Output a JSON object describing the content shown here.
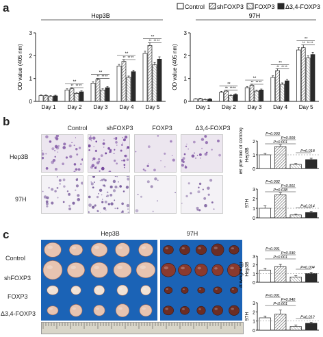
{
  "figure": {
    "panel_letters": [
      "a",
      "b",
      "c"
    ],
    "legend": {
      "entries": [
        {
          "label": "Control",
          "pattern": "white"
        },
        {
          "label": "shFOXP3",
          "pattern": "hatch"
        },
        {
          "label": "FOXP3",
          "pattern": "light-hatch"
        },
        {
          "label": "Δ3,4-FOXP3",
          "pattern": "black"
        }
      ]
    },
    "panel_b": {
      "columns": [
        "Control",
        "shFOXP3",
        "FOXP3",
        "Δ3,4-FOXP3"
      ],
      "rows": [
        "Hep3B",
        "97H"
      ]
    },
    "panel_c": {
      "column_headers": [
        "Hep3B",
        "97H"
      ],
      "rows": [
        "Control",
        "shFOXP3",
        "FOXP3",
        "Δ3,4-FOXP3"
      ]
    },
    "colors": {
      "white_bar": "#ffffff",
      "hatch_bar": "#9a9a9a",
      "light_hatch_bar": "#c8c8c8",
      "black_bar": "#2a2a2a",
      "tumor_bg": "#1b63b6"
    }
  },
  "chart_data": [
    {
      "type": "bar",
      "title": "Hep3B",
      "ylabel": "OD value (405 nm)",
      "categories": [
        "Day 1",
        "Day 2",
        "Day 3",
        "Day 4",
        "Day 5"
      ],
      "ylim": [
        0,
        3
      ],
      "yticks": [
        "0",
        "1",
        "2",
        "3"
      ],
      "series": [
        {
          "name": "Control",
          "values": [
            0.25,
            0.5,
            0.8,
            1.55,
            2.1
          ],
          "err": [
            0.03,
            0.05,
            0.06,
            0.07,
            0.1
          ]
        },
        {
          "name": "shFOXP3",
          "values": [
            0.25,
            0.55,
            0.95,
            1.75,
            2.45
          ],
          "err": [
            0.03,
            0.05,
            0.06,
            0.08,
            0.12
          ]
        },
        {
          "name": "FOXP3",
          "values": [
            0.22,
            0.35,
            0.5,
            1.05,
            1.6
          ],
          "err": [
            0.03,
            0.04,
            0.05,
            0.06,
            0.1
          ]
        },
        {
          "name": "Δ3,4-FOXP3",
          "values": [
            0.24,
            0.42,
            0.6,
            1.3,
            1.85
          ],
          "err": [
            0.03,
            0.04,
            0.05,
            0.07,
            0.1
          ]
        }
      ],
      "annotations": [
        "**"
      ]
    },
    {
      "type": "bar",
      "title": "97H",
      "ylabel": "OD value (405 nm)",
      "categories": [
        "Day 1",
        "Day 2",
        "Day 3",
        "Day 4",
        "Day 5"
      ],
      "ylim": [
        0,
        3
      ],
      "yticks": [
        "0",
        "1",
        "2",
        "3"
      ],
      "series": [
        {
          "name": "Control",
          "values": [
            0.1,
            0.4,
            0.6,
            1.05,
            2.25
          ],
          "err": [
            0.02,
            0.04,
            0.05,
            0.07,
            0.1
          ]
        },
        {
          "name": "shFOXP3",
          "values": [
            0.12,
            0.45,
            0.7,
            1.35,
            2.35
          ],
          "err": [
            0.02,
            0.04,
            0.05,
            0.08,
            0.12
          ]
        },
        {
          "name": "FOXP3",
          "values": [
            0.08,
            0.25,
            0.45,
            0.75,
            1.9
          ],
          "err": [
            0.02,
            0.03,
            0.04,
            0.06,
            0.1
          ]
        },
        {
          "name": "Δ3,4-FOXP3",
          "values": [
            0.1,
            0.3,
            0.5,
            0.9,
            2.05
          ],
          "err": [
            0.02,
            0.03,
            0.04,
            0.06,
            0.1
          ]
        }
      ],
      "annotations": [
        "**"
      ]
    },
    {
      "type": "bar",
      "title": "Hep3B",
      "ylabel": "Relative cell number (the fold of control)",
      "categories": [
        "Control",
        "shFOXP3",
        "FOXP3",
        "Δ3,4-FOXP3"
      ],
      "ylim": [
        0,
        2
      ],
      "yticks": [
        "0",
        "1",
        "2"
      ],
      "values": [
        1.0,
        1.6,
        0.3,
        0.65
      ],
      "err": [
        0.1,
        0.12,
        0.06,
        0.1
      ],
      "pvalues": [
        "P=0.003",
        "P=0.009",
        "P<0.001",
        "P=0.018"
      ]
    },
    {
      "type": "bar",
      "title": "97H",
      "ylabel": "Relative cell number (the fold of control)",
      "categories": [
        "Control",
        "shFOXP3",
        "FOXP3",
        "Δ3,4-FOXP3"
      ],
      "ylim": [
        0,
        3
      ],
      "yticks": [
        "0",
        "1",
        "2",
        "3"
      ],
      "values": [
        1.0,
        2.4,
        0.3,
        0.55
      ],
      "err": [
        0.25,
        0.2,
        0.1,
        0.12
      ],
      "pvalues": [
        "P=0.002",
        "P<0.001",
        "P=0.038",
        "P=0.014"
      ]
    },
    {
      "type": "bar",
      "title": "Hep3B",
      "ylabel": "Xenograft weight (g)",
      "categories": [
        "Control",
        "shFOXP3",
        "FOXP3",
        "Δ3,4-FOXP3"
      ],
      "ylim": [
        0,
        3
      ],
      "yticks": [
        "0",
        "1",
        "2",
        "3"
      ],
      "values": [
        1.4,
        1.8,
        0.6,
        1.0
      ],
      "err": [
        0.2,
        0.25,
        0.15,
        0.15
      ],
      "pvalues": [
        "P<0.001",
        "P=0.030",
        "P<0.001",
        "P=0.004"
      ]
    },
    {
      "type": "bar",
      "title": "97H",
      "ylabel": "Xenograft weight (g)",
      "categories": [
        "Control",
        "shFOXP3",
        "FOXP3",
        "Δ3,4-FOXP3"
      ],
      "ylim": [
        0,
        3
      ],
      "yticks": [
        "0",
        "1",
        "2",
        "3"
      ],
      "values": [
        1.35,
        1.75,
        0.4,
        0.75
      ],
      "err": [
        0.2,
        0.45,
        0.15,
        0.12
      ],
      "pvalues": [
        "P<0.001",
        "P=0.040",
        "P<0.001",
        "P=0.012"
      ]
    }
  ]
}
